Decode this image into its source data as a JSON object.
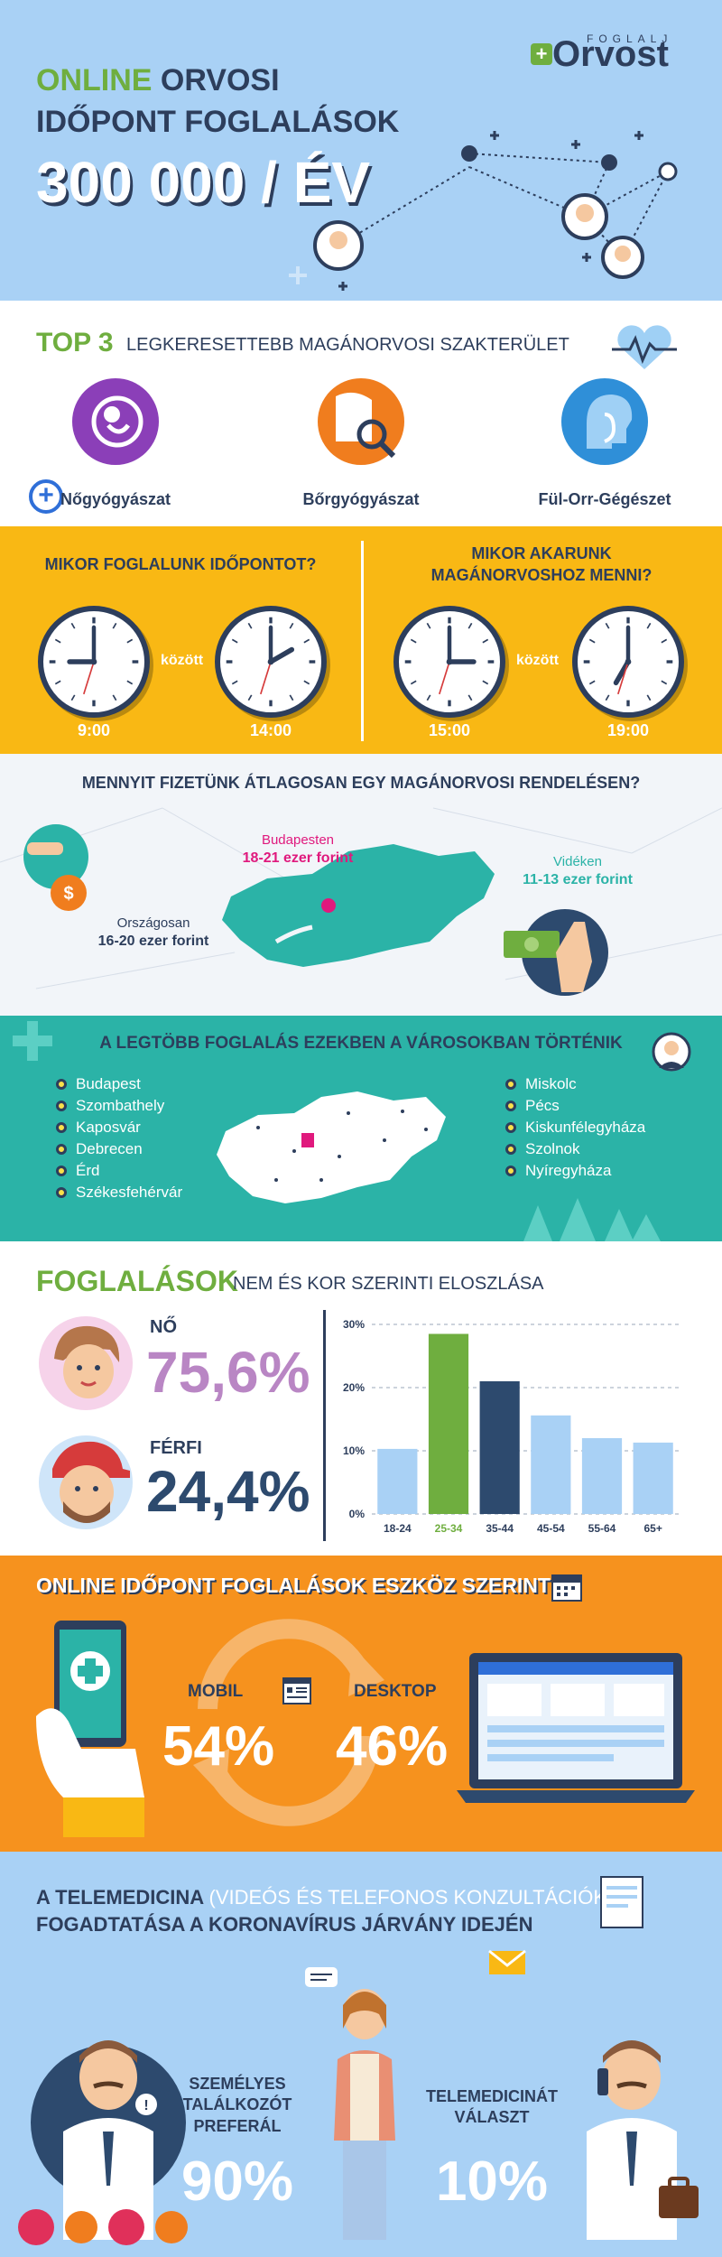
{
  "hero": {
    "line1_accent": "ONLINE",
    "line1_rest": "ORVOSI",
    "line2": "IDŐPONT FOGLALÁSOK",
    "line3": "300 000 / ÉV",
    "logo_small": "FOGLALJ",
    "logo_big": "Orvost",
    "colors": {
      "bg": "#a9d1f5",
      "accent": "#6fae3f",
      "navy": "#2d3e5c"
    }
  },
  "top3": {
    "title": "TOP 3",
    "subtitle": "LEGKERESETTEBB MAGÁNORVOSI SZAKTERÜLET",
    "items": [
      {
        "label": "Nőgyógyászat",
        "icon": "fetus-icon",
        "color": "#8b3fb8"
      },
      {
        "label": "Bőrgyógyászat",
        "icon": "skin-magnifier-icon",
        "color": "#f07d1e"
      },
      {
        "label": "Fül-Orr-Gégészet",
        "icon": "ent-head-icon",
        "color": "#2f8fd8"
      }
    ]
  },
  "clocks": {
    "left_question": "MIKOR FOGLALUNK IDŐPONTOT?",
    "right_question_1": "MIKOR AKARUNK",
    "right_question_2": "MAGÁNORVOSHOZ MENNI?",
    "between": "között",
    "times": [
      "9:00",
      "14:00",
      "15:00",
      "19:00"
    ],
    "clock_hours": [
      9,
      14,
      15,
      19
    ]
  },
  "prices": {
    "title": "MENNYIT FIZETÜNK ÁTLAGOSAN EGY MAGÁNORVOSI RENDELÉSEN?",
    "budapest_name": "Budapesten",
    "budapest_value": "18-21 ezer forint",
    "country_name": "Vidéken",
    "country_value": "11-13 ezer forint",
    "national_name": "Országosan",
    "national_value": "16-20 ezer forint"
  },
  "cities": {
    "title": "A LEGTÖBB FOGLALÁS EZEKBEN A VÁROSOKBAN TÖRTÉNIK",
    "left": [
      "Budapest",
      "Szombathely",
      "Kaposvár",
      "Debrecen",
      "Érd",
      "Székesfehérvár"
    ],
    "right": [
      "Miskolc",
      "Pécs",
      "Kiskunfélegyháza",
      "Szolnok",
      "Nyíregyháza"
    ]
  },
  "gender": {
    "title": "FOGLALÁSOK",
    "subtitle": "NEM ÉS KOR SZERINTI ELOSZLÁSA",
    "female_label": "NŐ",
    "female_value": "75,6%",
    "male_label": "FÉRFI",
    "male_value": "24,4%",
    "female_color": "#b986c4",
    "male_color": "#2d4a6e"
  },
  "chart_data": {
    "type": "bar",
    "categories": [
      "18-24",
      "25-34",
      "35-44",
      "45-54",
      "55-64",
      "65+"
    ],
    "values": [
      10.3,
      28.5,
      21,
      15.6,
      12,
      11.3
    ],
    "colors": [
      "#a9d1f5",
      "#6fae3f",
      "#2d4a6e",
      "#a9d1f5",
      "#a9d1f5",
      "#a9d1f5"
    ],
    "y_ticks": [
      "0%",
      "10%",
      "20%",
      "30%"
    ],
    "ylim": [
      0,
      30
    ],
    "grid": true
  },
  "devices": {
    "title": "ONLINE IDŐPONT FOGLALÁSOK ESZKÖZ SZERINT",
    "mobile_label": "MOBIL",
    "mobile_value": "54%",
    "desktop_label": "DESKTOP",
    "desktop_value": "46%"
  },
  "tele": {
    "line1_a": "A TELEMEDICINA",
    "line1_b": "(VIDEÓS ÉS TELEFONOS KONZULTÁCIÓK)",
    "line2": "FOGADTATÁSA A KORONAVÍRUS JÁRVÁNY IDEJÉN",
    "left_label_1": "SZEMÉLYES",
    "left_label_2": "TALÁLKOZÓT",
    "left_label_3": "PREFERÁL",
    "left_value": "90%",
    "right_label_1": "TELEMEDICINÁT",
    "right_label_2": "VÁLASZT",
    "right_value": "10%"
  }
}
